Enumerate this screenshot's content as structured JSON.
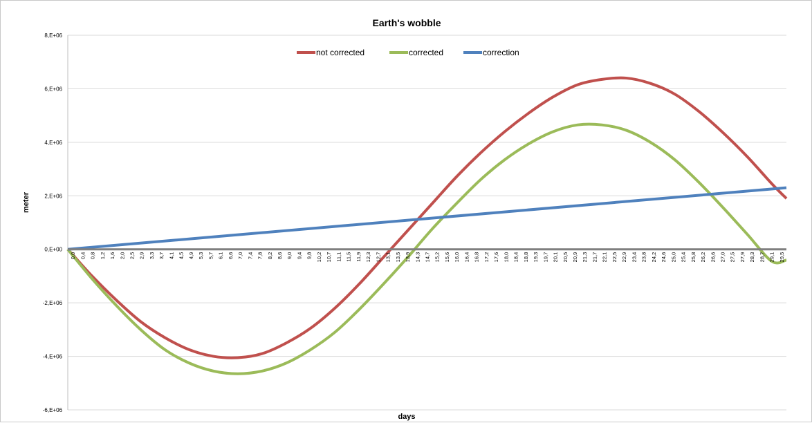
{
  "chart_data": {
    "type": "line",
    "title": "Earth's wobble",
    "xlabel": "days",
    "ylabel": "meter",
    "ylim": [
      -6000000,
      8000000
    ],
    "y_ticks": [
      8000000,
      6000000,
      4000000,
      2000000,
      0,
      -2000000,
      -4000000,
      -6000000
    ],
    "y_tick_labels": [
      "8,E+06",
      "6,E+06",
      "4,E+06",
      "2,E+06",
      "0,E+00",
      "-2,E+06",
      "-4,E+06",
      "-6,E+06"
    ],
    "x_range": [
      0,
      29.6
    ],
    "x_tick_labels": [
      "0,0",
      "0,4",
      "0,8",
      "1,2",
      "1,6",
      "2,0",
      "2,5",
      "2,9",
      "3,3",
      "3,7",
      "4,1",
      "4,5",
      "4,9",
      "5,3",
      "5,7",
      "6,1",
      "6,6",
      "7,0",
      "7,4",
      "7,8",
      "8,2",
      "8,6",
      "9,0",
      "9,4",
      "9,8",
      "10,2",
      "10,7",
      "11,1",
      "11,5",
      "11,9",
      "12,3",
      "12,7",
      "13,1",
      "13,5",
      "13,9",
      "14,3",
      "14,7",
      "15,2",
      "15,6",
      "16,0",
      "16,4",
      "16,8",
      "17,2",
      "17,6",
      "18,0",
      "18,4",
      "18,8",
      "19,3",
      "19,7",
      "20,1",
      "20,5",
      "20,9",
      "21,3",
      "21,7",
      "22,1",
      "22,5",
      "22,9",
      "23,4",
      "23,8",
      "24,2",
      "24,6",
      "25,0",
      "25,4",
      "25,8",
      "26,2",
      "26,6",
      "27,0",
      "27,5",
      "27,9",
      "28,3",
      "28,7",
      "29,1",
      "29,5"
    ],
    "grid": true,
    "legend_position": "top-center",
    "series": [
      {
        "name": "not corrected",
        "color": "#c0504d",
        "x": [
          0,
          1,
          2,
          3,
          4,
          5,
          6,
          7,
          8,
          9,
          10,
          11,
          12,
          13,
          14,
          15,
          16,
          17,
          18,
          19,
          20,
          21,
          22,
          23,
          24,
          25,
          26,
          27,
          28,
          29,
          29.6
        ],
        "values": [
          0,
          -1000000,
          -1900000,
          -2700000,
          -3300000,
          -3750000,
          -4000000,
          -4050000,
          -3900000,
          -3500000,
          -2950000,
          -2200000,
          -1300000,
          -300000,
          700000,
          1700000,
          2700000,
          3600000,
          4400000,
          5100000,
          5700000,
          6150000,
          6350000,
          6400000,
          6200000,
          5800000,
          5150000,
          4350000,
          3450000,
          2450000,
          1900000
        ]
      },
      {
        "name": "corrected",
        "color": "#9bbb59",
        "x": [
          0,
          1,
          2,
          3,
          4,
          5,
          6,
          7,
          8,
          9,
          10,
          11,
          12,
          13,
          14,
          15,
          16,
          17,
          18,
          19,
          20,
          21,
          22,
          23,
          24,
          25,
          26,
          27,
          28,
          29,
          29.6
        ],
        "values": [
          0,
          -1100000,
          -2100000,
          -3000000,
          -3750000,
          -4250000,
          -4550000,
          -4650000,
          -4550000,
          -4250000,
          -3750000,
          -3100000,
          -2250000,
          -1300000,
          -300000,
          750000,
          1700000,
          2600000,
          3350000,
          3950000,
          4400000,
          4650000,
          4650000,
          4450000,
          4000000,
          3350000,
          2500000,
          1550000,
          550000,
          -450000,
          -400000
        ]
      },
      {
        "name": "correction",
        "color": "#4f81bd",
        "x": [
          0,
          29.6
        ],
        "values": [
          0,
          2300000
        ]
      }
    ],
    "baseline": {
      "value": 0,
      "color": "#7f7f7f"
    }
  }
}
